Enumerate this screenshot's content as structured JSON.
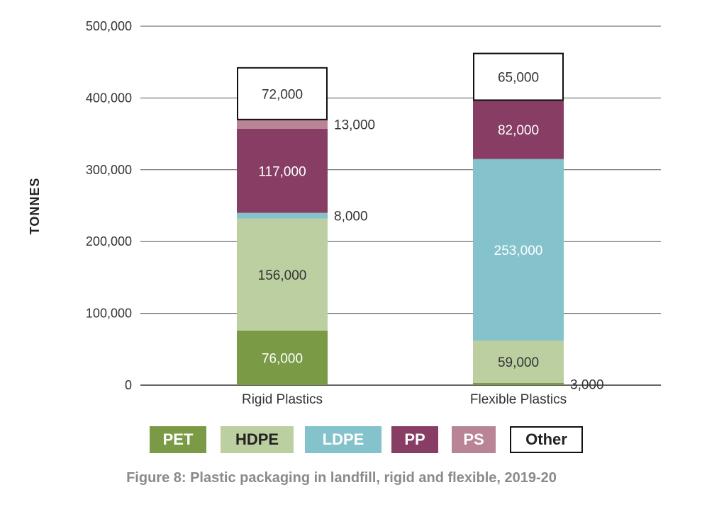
{
  "chart_data": {
    "type": "bar",
    "stacked": true,
    "title": "Figure 8: Plastic packaging in landfill, rigid and flexible, 2019-20",
    "xlabel": "",
    "ylabel": "TONNES",
    "ylim": [
      0,
      500000
    ],
    "yticks": [
      0,
      100000,
      200000,
      300000,
      400000,
      500000
    ],
    "ytick_labels": [
      "0",
      "100,000",
      "200,000",
      "300,000",
      "400,000",
      "500,000"
    ],
    "grid": true,
    "legend_position": "bottom",
    "categories": [
      "Rigid Plastics",
      "Flexible Plastics"
    ],
    "series": [
      {
        "name": "PET",
        "color": "#7a9a45",
        "label_color": "#ffffff",
        "values": [
          76000,
          3000
        ],
        "labels": [
          "76,000",
          "3,000"
        ]
      },
      {
        "name": "HDPE",
        "color": "#bccfa0",
        "label_color": "#333333",
        "values": [
          156000,
          59000
        ],
        "labels": [
          "156,000",
          "59,000"
        ]
      },
      {
        "name": "LDPE",
        "color": "#84c2cc",
        "label_color": "#ffffff",
        "values": [
          8000,
          253000
        ],
        "labels": [
          "8,000",
          "253,000"
        ]
      },
      {
        "name": "PP",
        "color": "#873d64",
        "label_color": "#ffffff",
        "values": [
          117000,
          82000
        ],
        "labels": [
          "117,000",
          "82,000"
        ]
      },
      {
        "name": "PS",
        "color": "#b88496",
        "label_color": "#333333",
        "values": [
          13000,
          0
        ],
        "labels": [
          "13,000",
          ""
        ]
      },
      {
        "name": "Other",
        "color": "#ffffff",
        "label_color": "#333333",
        "values": [
          72000,
          65000
        ],
        "labels": [
          "72,000",
          "65,000"
        ]
      }
    ]
  }
}
